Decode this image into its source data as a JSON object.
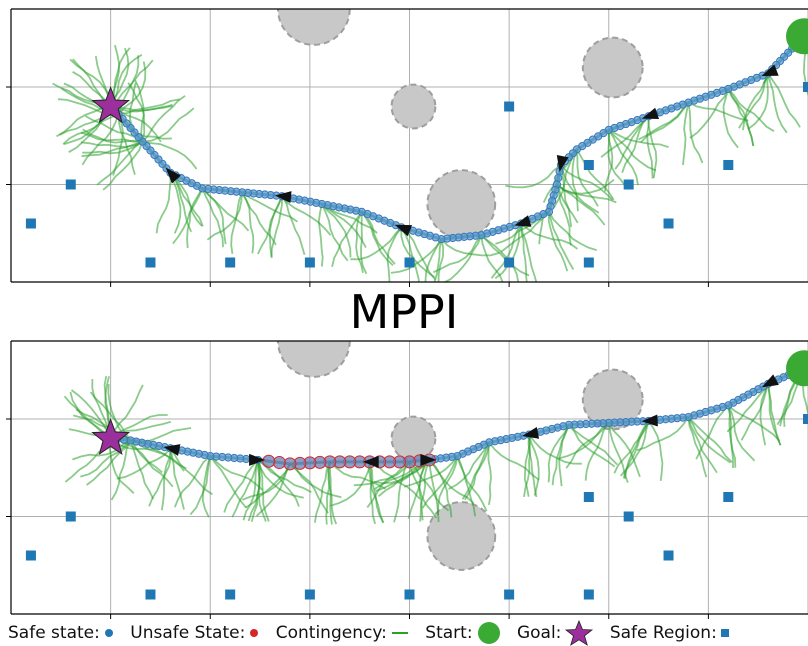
{
  "figure": {
    "title": "MPPI"
  },
  "legend": {
    "safe_state": "Safe state:",
    "unsafe_state": "Unsafe State:",
    "contingency": "Contingency:",
    "start": "Start:",
    "goal": "Goal:",
    "safe_region": "Safe Region:"
  },
  "colors": {
    "safe": "#5b9bd5",
    "safe_edge": "#3a78b8",
    "unsafe": "#d62728",
    "contingency": "#2ca02c",
    "start": "#3aaa35",
    "goal": "#9b2f9b",
    "region": "#1f77b4",
    "obstacle": "#c8c8c8"
  },
  "chart_data": [
    {
      "type": "scatter",
      "panel": "top",
      "xlim": [
        0,
        20
      ],
      "ylim": [
        0,
        7
      ],
      "grid": true,
      "start": [
        19.9,
        6.3
      ],
      "goal": [
        2.5,
        4.5
      ],
      "obstacles": [
        {
          "x": 7.6,
          "y": 7.0,
          "r": 0.9
        },
        {
          "x": 15.1,
          "y": 5.5,
          "r": 0.75
        },
        {
          "x": 10.1,
          "y": 4.5,
          "r": 0.55
        },
        {
          "x": 11.3,
          "y": 2.0,
          "r": 0.85
        }
      ],
      "safe_regions": [
        [
          0.5,
          1.5
        ],
        [
          1.5,
          2.5
        ],
        [
          3.5,
          0.5
        ],
        [
          5.5,
          0.5
        ],
        [
          7.5,
          0.5
        ],
        [
          10.0,
          0.5
        ],
        [
          12.5,
          4.5
        ],
        [
          12.5,
          0.5
        ],
        [
          14.5,
          3.0
        ],
        [
          14.5,
          0.5
        ],
        [
          15.5,
          2.5
        ],
        [
          16.5,
          1.5
        ],
        [
          18.0,
          3.0
        ],
        [
          20.0,
          5.0
        ]
      ],
      "trajectory_safe": [
        [
          19.9,
          6.3
        ],
        [
          19.0,
          5.35
        ],
        [
          18.0,
          4.95
        ],
        [
          17.0,
          4.6
        ],
        [
          16.0,
          4.25
        ],
        [
          15.0,
          3.9
        ],
        [
          14.2,
          3.4
        ],
        [
          13.8,
          3.0
        ],
        [
          13.7,
          2.5
        ],
        [
          13.5,
          1.8
        ],
        [
          12.8,
          1.5
        ],
        [
          11.8,
          1.2
        ],
        [
          10.8,
          1.1
        ],
        [
          9.8,
          1.4
        ],
        [
          8.8,
          1.8
        ],
        [
          7.8,
          2.0
        ],
        [
          6.8,
          2.2
        ],
        [
          5.8,
          2.3
        ],
        [
          4.8,
          2.4
        ],
        [
          4.0,
          2.8
        ],
        [
          3.3,
          3.6
        ],
        [
          2.7,
          4.3
        ],
        [
          2.5,
          4.5
        ]
      ],
      "trajectory_unsafe": []
    },
    {
      "type": "scatter",
      "panel": "bottom",
      "xlim": [
        0,
        20
      ],
      "ylim": [
        0,
        7
      ],
      "grid": true,
      "start": [
        19.9,
        6.3
      ],
      "goal": [
        2.5,
        4.5
      ],
      "obstacles": [
        {
          "x": 7.6,
          "y": 7.0,
          "r": 0.9
        },
        {
          "x": 15.1,
          "y": 5.5,
          "r": 0.75
        },
        {
          "x": 10.1,
          "y": 4.5,
          "r": 0.55
        },
        {
          "x": 11.3,
          "y": 2.0,
          "r": 0.85
        }
      ],
      "safe_regions": [
        [
          0.5,
          1.5
        ],
        [
          1.5,
          2.5
        ],
        [
          3.5,
          0.5
        ],
        [
          5.5,
          0.5
        ],
        [
          7.5,
          0.5
        ],
        [
          10.0,
          0.5
        ],
        [
          12.5,
          0.5
        ],
        [
          14.5,
          3.0
        ],
        [
          14.5,
          0.5
        ],
        [
          15.5,
          2.5
        ],
        [
          16.5,
          1.5
        ],
        [
          18.0,
          3.0
        ],
        [
          20.0,
          5.0
        ]
      ],
      "trajectory_safe": [
        [
          19.9,
          6.3
        ],
        [
          19.0,
          5.9
        ],
        [
          18.0,
          5.35
        ],
        [
          17.0,
          5.05
        ],
        [
          16.0,
          4.95
        ],
        [
          15.0,
          4.9
        ],
        [
          14.0,
          4.85
        ],
        [
          13.0,
          4.6
        ],
        [
          12.0,
          4.4
        ],
        [
          11.2,
          4.05
        ],
        [
          10.5,
          3.95
        ]
      ],
      "trajectory_unsafe": [
        [
          10.5,
          3.95
        ],
        [
          10.0,
          3.9
        ],
        [
          9.0,
          3.9
        ],
        [
          8.0,
          3.9
        ],
        [
          7.0,
          3.85
        ],
        [
          6.2,
          3.95
        ]
      ],
      "trajectory_safe_tail": [
        [
          6.2,
          3.95
        ],
        [
          5.0,
          4.05
        ],
        [
          4.0,
          4.25
        ],
        [
          3.0,
          4.45
        ],
        [
          2.5,
          4.5
        ]
      ]
    }
  ]
}
